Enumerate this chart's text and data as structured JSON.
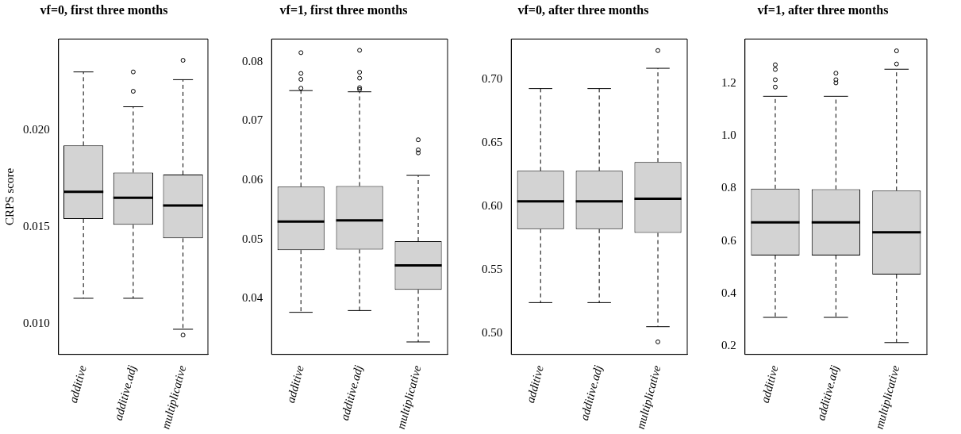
{
  "chart_data": [
    {
      "type": "box",
      "title": "vf=0, first three months",
      "ylabel": "CRPS score",
      "categories": [
        "additive",
        "additive.adj",
        "multiplicative"
      ],
      "ylim": [
        0.0084,
        0.0247
      ],
      "yticks": [
        {
          "value": 0.01,
          "label": "0.010"
        },
        {
          "value": 0.015,
          "label": "0.015"
        },
        {
          "value": 0.02,
          "label": "0.020"
        }
      ],
      "boxes": [
        {
          "low": 0.0113,
          "q1": 0.0154,
          "median": 0.0168,
          "q3": 0.0192,
          "high": 0.023
        },
        {
          "low": 0.0113,
          "q1": 0.0151,
          "median": 0.0165,
          "q3": 0.0178,
          "high": 0.0212,
          "outliers": [
            0.022,
            0.023
          ]
        },
        {
          "low": 0.0097,
          "q1": 0.0144,
          "median": 0.0161,
          "q3": 0.0177,
          "high": 0.0226,
          "outliers": [
            0.0094,
            0.0236
          ]
        }
      ]
    },
    {
      "type": "box",
      "title": "vf=1, first three months",
      "categories": [
        "additive",
        "additive.adj",
        "multiplicative"
      ],
      "ylim": [
        0.0306,
        0.0838
      ],
      "yticks": [
        0.04,
        0.05,
        0.06,
        0.07,
        0.08
      ],
      "boxes": [
        {
          "low": 0.0377,
          "q1": 0.0482,
          "median": 0.053,
          "q3": 0.0589,
          "high": 0.0751,
          "outliers": [
            0.0755,
            0.077,
            0.078,
            0.0815
          ]
        },
        {
          "low": 0.038,
          "q1": 0.0483,
          "median": 0.0532,
          "q3": 0.059,
          "high": 0.0749,
          "outliers": [
            0.0753,
            0.0756,
            0.0772,
            0.0782,
            0.0819
          ]
        },
        {
          "low": 0.0327,
          "q1": 0.0415,
          "median": 0.0456,
          "q3": 0.0497,
          "high": 0.0608,
          "outliers": [
            0.0646,
            0.0651,
            0.0668
          ]
        }
      ]
    },
    {
      "type": "box",
      "title": "vf=0, after three months",
      "categories": [
        "additive",
        "additive.adj",
        "multiplicative"
      ],
      "ylim": [
        0.4831,
        0.7321
      ],
      "yticks": [
        {
          "value": 0.5,
          "label": "0.50"
        },
        0.55,
        {
          "value": 0.6,
          "label": "0.60"
        },
        0.65,
        {
          "value": 0.7,
          "label": "0.70"
        }
      ],
      "boxes": [
        {
          "low": 0.524,
          "q1": 0.582,
          "median": 0.604,
          "q3": 0.628,
          "high": 0.693
        },
        {
          "low": 0.524,
          "q1": 0.582,
          "median": 0.604,
          "q3": 0.628,
          "high": 0.693
        },
        {
          "low": 0.505,
          "q1": 0.579,
          "median": 0.606,
          "q3": 0.635,
          "high": 0.709,
          "outliers": [
            0.493,
            0.723
          ]
        }
      ]
    },
    {
      "type": "box",
      "title": "vf=1, after three months",
      "categories": [
        "additive",
        "additive.adj",
        "multiplicative"
      ],
      "ylim": [
        0.168,
        1.369
      ],
      "yticks": [
        0.2,
        0.4,
        0.6,
        0.8,
        {
          "value": 1,
          "label": "1.0"
        },
        1.2
      ],
      "boxes": [
        {
          "low": 0.309,
          "q1": 0.545,
          "median": 0.671,
          "q3": 0.799,
          "high": 1.151,
          "outliers": [
            1.186,
            1.214,
            1.253,
            1.271
          ]
        },
        {
          "low": 0.309,
          "q1": 0.545,
          "median": 0.671,
          "q3": 0.797,
          "high": 1.151,
          "outliers": [
            1.202,
            1.214,
            1.239
          ]
        },
        {
          "low": 0.213,
          "q1": 0.472,
          "median": 0.633,
          "q3": 0.792,
          "high": 1.254,
          "outliers": [
            1.274,
            1.324
          ]
        }
      ]
    }
  ]
}
